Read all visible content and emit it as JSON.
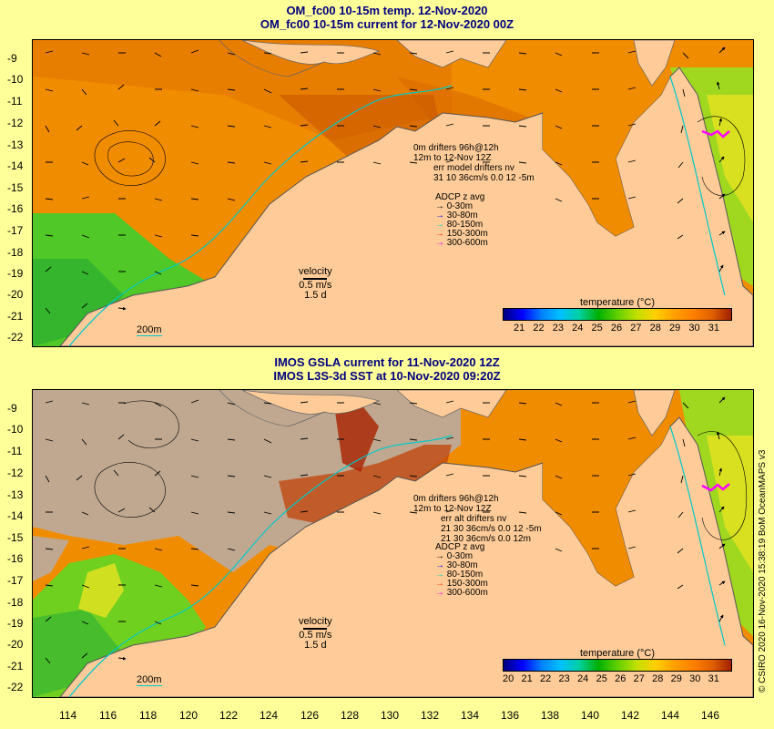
{
  "top_panel": {
    "title_line1": "OM_fc00 10-15m temp. 12-Nov-2020",
    "title_line2": "OM_fc00 10-15m current for 12-Nov-2020 00Z",
    "legend_lines": [
      "0m  drifters 96h@12h",
      "12m  to 12-Nov 12Z",
      "err model drifters nv",
      "31 10 36cm/s 0.0 12 -5m"
    ],
    "adcp_title": "ADCP z avg",
    "adcp_items": [
      {
        "label": "0-30m",
        "color": "#000000"
      },
      {
        "label": "30-80m",
        "color": "#0000ff"
      },
      {
        "label": "80-150m",
        "color": "#00c8c8"
      },
      {
        "label": "150-300m",
        "color": "#ff3300"
      },
      {
        "label": "300-600m",
        "color": "#ff00ff"
      }
    ],
    "velocity_label": "velocity",
    "velocity_scale": "0.5 m/s",
    "velocity_time": "1.5 d",
    "isobath_label": "200m",
    "colorbar_title": "temperature (°C)",
    "colorbar_ticks": [
      "21",
      "22",
      "23",
      "24",
      "25",
      "26",
      "27",
      "28",
      "29",
      "30",
      "31"
    ]
  },
  "bottom_panel": {
    "title_line1": "IMOS GSLA current for 11-Nov-2020 12Z",
    "title_line2": "IMOS L3S-3d SST at 10-Nov-2020 09:20Z",
    "legend_lines": [
      "0m  drifters 96h@12h",
      "12m  to 12-Nov 12Z",
      "err alt drifters nv",
      "21 30 36cm/s 0.0 12 -5m",
      "21 30 36cm/s 0.0 12m"
    ],
    "adcp_title": "ADCP z avg",
    "adcp_items": [
      {
        "label": "0-30m",
        "color": "#000000"
      },
      {
        "label": "30-80m",
        "color": "#0000ff"
      },
      {
        "label": "80-150m",
        "color": "#00c8c8"
      },
      {
        "label": "150-300m",
        "color": "#ff3300"
      },
      {
        "label": "300-600m",
        "color": "#ff00ff"
      }
    ],
    "velocity_label": "velocity",
    "velocity_scale": "0.5 m/s",
    "velocity_time": "1.5 d",
    "isobath_label": "200m",
    "colorbar_title": "temperature (°C)",
    "colorbar_ticks": [
      "20",
      "21",
      "22",
      "23",
      "24",
      "25",
      "26",
      "27",
      "28",
      "29",
      "30",
      "31"
    ]
  },
  "latitude_labels": [
    "-9",
    "-10",
    "-11",
    "-12",
    "-13",
    "-14",
    "-15",
    "-16",
    "-17",
    "-18",
    "-19",
    "-20",
    "-21",
    "-22"
  ],
  "longitude_labels": [
    "114",
    "116",
    "118",
    "120",
    "122",
    "124",
    "126",
    "128",
    "130",
    "132",
    "134",
    "136",
    "138",
    "140",
    "142",
    "144",
    "146"
  ],
  "copyright": "© CSIRO 2020  16-Nov-2020 15:38:19 BoM OceanMAPS v3",
  "colors": {
    "page_background": "#ffff99",
    "title_text": "#000080",
    "land": "#ffcc99",
    "no_data": "#c0a890",
    "isobath": "#00c8c8",
    "drifter": "#ff00ff",
    "colorbar_stops": [
      "#000080",
      "#0000ff",
      "#0080ff",
      "#00c0ff",
      "#00d0a0",
      "#00b000",
      "#60d000",
      "#c0e000",
      "#ffd000",
      "#ffa000",
      "#ff8000",
      "#e06000",
      "#a02000"
    ]
  }
}
